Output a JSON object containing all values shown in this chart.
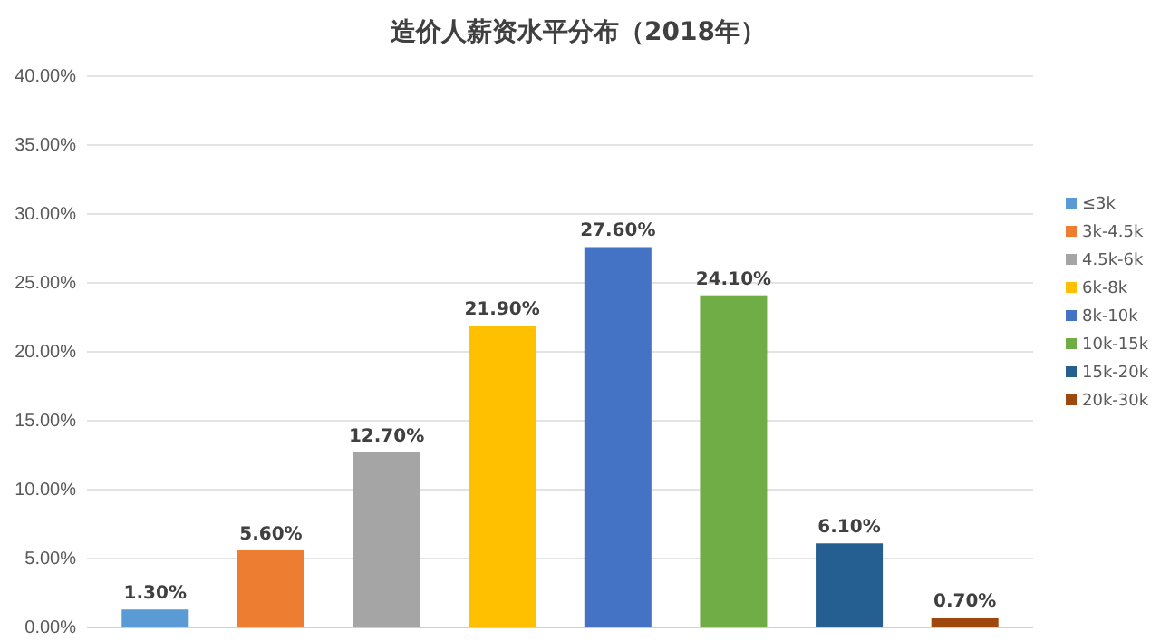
{
  "chart_data": {
    "type": "bar",
    "title": "造价人薪资水平分布（2018年）",
    "categories": [
      null,
      null,
      null,
      null,
      null,
      null,
      null,
      null
    ],
    "series": [
      {
        "name": "≤3k",
        "color": "#5b9bd5",
        "values": [
          1.3,
          null,
          null,
          null,
          null,
          null,
          null,
          null
        ],
        "value_labels": [
          "1.30%",
          null,
          null,
          null,
          null,
          null,
          null,
          null
        ]
      },
      {
        "name": "3k-4.5k",
        "color": "#ed7d31",
        "values": [
          null,
          5.6,
          null,
          null,
          null,
          null,
          null,
          null
        ],
        "value_labels": [
          null,
          "5.60%",
          null,
          null,
          null,
          null,
          null,
          null
        ]
      },
      {
        "name": "4.5k-6k",
        "color": "#a5a5a5",
        "values": [
          null,
          null,
          12.7,
          null,
          null,
          null,
          null,
          null
        ],
        "value_labels": [
          null,
          null,
          "12.70%",
          null,
          null,
          null,
          null,
          null
        ]
      },
      {
        "name": "6k-8k",
        "color": "#ffc000",
        "values": [
          null,
          null,
          null,
          21.9,
          null,
          null,
          null,
          null
        ],
        "value_labels": [
          null,
          null,
          null,
          "21.90%",
          null,
          null,
          null,
          null
        ]
      },
      {
        "name": "8k-10k",
        "color": "#4472c4",
        "values": [
          null,
          null,
          null,
          null,
          27.6,
          null,
          null,
          null
        ],
        "value_labels": [
          null,
          null,
          null,
          null,
          "27.60%",
          null,
          null,
          null
        ]
      },
      {
        "name": "10k-15k",
        "color": "#70ad47",
        "values": [
          null,
          null,
          null,
          null,
          null,
          24.1,
          null,
          null
        ],
        "value_labels": [
          null,
          null,
          null,
          null,
          null,
          "24.10%",
          null,
          null
        ]
      },
      {
        "name": "15k-20k",
        "color": "#255e91",
        "values": [
          null,
          null,
          null,
          null,
          null,
          null,
          6.1,
          null
        ],
        "value_labels": [
          null,
          null,
          null,
          null,
          null,
          null,
          "6.10%",
          null
        ]
      },
      {
        "name": "20k-30k",
        "color": "#9e480e",
        "values": [
          null,
          null,
          null,
          null,
          null,
          null,
          null,
          0.7
        ],
        "value_labels": [
          null,
          null,
          null,
          null,
          null,
          null,
          null,
          "0.70%"
        ]
      }
    ],
    "ylim": [
      0,
      40
    ],
    "yticks": [
      {
        "value": 0,
        "label": "0.00%"
      },
      {
        "value": 5,
        "label": "5.00%"
      },
      {
        "value": 10,
        "label": "10.00%"
      },
      {
        "value": 15,
        "label": "15.00%"
      },
      {
        "value": 20,
        "label": "20.00%"
      },
      {
        "value": 25,
        "label": "25.00%"
      },
      {
        "value": 30,
        "label": "30.00%"
      },
      {
        "value": 35,
        "label": "35.00%"
      },
      {
        "value": 40,
        "label": "40.00%"
      }
    ],
    "grid": "y",
    "legend": "right"
  }
}
